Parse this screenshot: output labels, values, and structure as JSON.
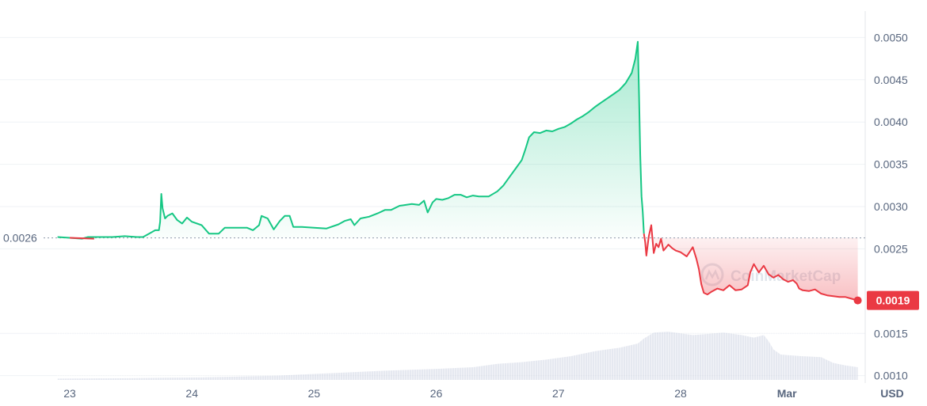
{
  "chart_data": {
    "type": "line",
    "x_tick_labels": [
      "23",
      "24",
      "25",
      "26",
      "27",
      "28",
      "Mar"
    ],
    "currency_label": "USD",
    "y_ticks": [
      {
        "value": 0.005,
        "label": "0.0050"
      },
      {
        "value": 0.0045,
        "label": "0.0045"
      },
      {
        "value": 0.004,
        "label": "0.0040"
      },
      {
        "value": 0.0035,
        "label": "0.0035"
      },
      {
        "value": 0.003,
        "label": "0.0030"
      },
      {
        "value": 0.0025,
        "label": "0.0025"
      },
      {
        "value": 0.0015,
        "label": "0.0015"
      },
      {
        "value": 0.001,
        "label": "0.0010"
      }
    ],
    "ylim": [
      0.00095,
      0.00535
    ],
    "xlim": [
      22.6,
      30.45
    ],
    "reference_price": {
      "value": 0.00263,
      "label": "0.0026"
    },
    "current_price": {
      "value": 0.00189,
      "label": "0.0019"
    },
    "watermark": "CoinMarketCap",
    "grid": true,
    "colors": {
      "up": "#16c784",
      "down": "#ea3943",
      "grid": "#eff2f5",
      "axis_text": "#58667e",
      "volume": "#cfd6e4"
    },
    "series": [
      {
        "values": [
          [
            22.9,
            0.00264
          ],
          [
            23.0,
            0.00263
          ],
          [
            23.1,
            0.00262
          ],
          [
            23.15,
            0.00264
          ],
          [
            23.25,
            0.00264
          ],
          [
            23.35,
            0.00264
          ],
          [
            23.45,
            0.00265
          ],
          [
            23.55,
            0.00264
          ],
          [
            23.6,
            0.00264
          ],
          [
            23.65,
            0.00268
          ],
          [
            23.7,
            0.00272
          ],
          [
            23.73,
            0.00272
          ],
          [
            23.74,
            0.00282
          ],
          [
            23.75,
            0.00315
          ],
          [
            23.76,
            0.00298
          ],
          [
            23.78,
            0.00286
          ],
          [
            23.8,
            0.00289
          ],
          [
            23.84,
            0.00292
          ],
          [
            23.88,
            0.00284
          ],
          [
            23.92,
            0.0028
          ],
          [
            23.96,
            0.00287
          ],
          [
            24.0,
            0.00282
          ],
          [
            24.08,
            0.00278
          ],
          [
            24.14,
            0.00268
          ],
          [
            24.22,
            0.00268
          ],
          [
            24.27,
            0.00275
          ],
          [
            24.35,
            0.00275
          ],
          [
            24.45,
            0.00275
          ],
          [
            24.5,
            0.00272
          ],
          [
            24.55,
            0.00278
          ],
          [
            24.57,
            0.00289
          ],
          [
            24.62,
            0.00286
          ],
          [
            24.67,
            0.00273
          ],
          [
            24.72,
            0.00283
          ],
          [
            24.76,
            0.00289
          ],
          [
            24.8,
            0.00289
          ],
          [
            24.83,
            0.00276
          ],
          [
            24.9,
            0.00276
          ],
          [
            25.0,
            0.00275
          ],
          [
            25.1,
            0.00274
          ],
          [
            25.2,
            0.00279
          ],
          [
            25.25,
            0.00283
          ],
          [
            25.3,
            0.00285
          ],
          [
            25.33,
            0.00278
          ],
          [
            25.38,
            0.00286
          ],
          [
            25.45,
            0.00288
          ],
          [
            25.52,
            0.00292
          ],
          [
            25.58,
            0.00296
          ],
          [
            25.63,
            0.00296
          ],
          [
            25.7,
            0.00301
          ],
          [
            25.8,
            0.00303
          ],
          [
            25.86,
            0.00302
          ],
          [
            25.9,
            0.00307
          ],
          [
            25.93,
            0.00293
          ],
          [
            25.97,
            0.00305
          ],
          [
            26.0,
            0.00309
          ],
          [
            26.05,
            0.00308
          ],
          [
            26.1,
            0.0031
          ],
          [
            26.15,
            0.00314
          ],
          [
            26.2,
            0.00314
          ],
          [
            26.25,
            0.00311
          ],
          [
            26.3,
            0.00313
          ],
          [
            26.35,
            0.00312
          ],
          [
            26.43,
            0.00312
          ],
          [
            26.5,
            0.00318
          ],
          [
            26.55,
            0.00325
          ],
          [
            26.6,
            0.00335
          ],
          [
            26.65,
            0.00345
          ],
          [
            26.7,
            0.00355
          ],
          [
            26.73,
            0.00368
          ],
          [
            26.76,
            0.00382
          ],
          [
            26.8,
            0.00388
          ],
          [
            26.85,
            0.00387
          ],
          [
            26.9,
            0.0039
          ],
          [
            26.95,
            0.00389
          ],
          [
            27.0,
            0.00392
          ],
          [
            27.05,
            0.00394
          ],
          [
            27.1,
            0.00398
          ],
          [
            27.15,
            0.00403
          ],
          [
            27.2,
            0.00407
          ],
          [
            27.25,
            0.00412
          ],
          [
            27.3,
            0.00418
          ],
          [
            27.35,
            0.00423
          ],
          [
            27.4,
            0.00428
          ],
          [
            27.45,
            0.00433
          ],
          [
            27.5,
            0.00438
          ],
          [
            27.55,
            0.00446
          ],
          [
            27.6,
            0.00458
          ],
          [
            27.63,
            0.00475
          ],
          [
            27.65,
            0.00495
          ],
          [
            27.66,
            0.0043
          ],
          [
            27.67,
            0.0036
          ],
          [
            27.68,
            0.00312
          ],
          [
            27.69,
            0.00294
          ],
          [
            27.7,
            0.00268
          ]
        ]
      },
      {
        "values": [
          [
            27.7,
            0.00268
          ],
          [
            27.71,
            0.00258
          ],
          [
            27.72,
            0.00242
          ],
          [
            27.74,
            0.00265
          ],
          [
            27.76,
            0.00278
          ],
          [
            27.78,
            0.00245
          ],
          [
            27.8,
            0.00256
          ],
          [
            27.82,
            0.00252
          ],
          [
            27.84,
            0.00262
          ],
          [
            27.86,
            0.00248
          ],
          [
            27.9,
            0.00255
          ],
          [
            27.93,
            0.00251
          ],
          [
            27.96,
            0.00248
          ],
          [
            28.0,
            0.00246
          ],
          [
            28.05,
            0.00241
          ],
          [
            28.1,
            0.00252
          ],
          [
            28.13,
            0.00238
          ],
          [
            28.15,
            0.00226
          ],
          [
            28.17,
            0.00208
          ],
          [
            28.19,
            0.00198
          ],
          [
            28.22,
            0.00196
          ],
          [
            28.25,
            0.00199
          ],
          [
            28.3,
            0.00203
          ],
          [
            28.35,
            0.00201
          ],
          [
            28.4,
            0.00207
          ],
          [
            28.45,
            0.00201
          ],
          [
            28.5,
            0.00202
          ],
          [
            28.55,
            0.00207
          ],
          [
            28.57,
            0.00222
          ],
          [
            28.6,
            0.00232
          ],
          [
            28.64,
            0.00222
          ],
          [
            28.68,
            0.0023
          ],
          [
            28.72,
            0.0022
          ],
          [
            28.76,
            0.00216
          ],
          [
            28.8,
            0.00219
          ],
          [
            28.84,
            0.00214
          ],
          [
            28.88,
            0.00211
          ],
          [
            28.92,
            0.00213
          ],
          [
            28.95,
            0.00209
          ],
          [
            28.97,
            0.00203
          ],
          [
            29.0,
            0.00201
          ],
          [
            29.05,
            0.002
          ],
          [
            29.1,
            0.00202
          ],
          [
            29.15,
            0.00197
          ],
          [
            29.2,
            0.00195
          ],
          [
            29.25,
            0.00194
          ],
          [
            29.3,
            0.00193
          ],
          [
            29.35,
            0.00193
          ],
          [
            29.4,
            0.00191
          ],
          [
            29.45,
            0.00189
          ]
        ]
      },
      {
        "values": [
          [
            22.9,
            0.000965
          ],
          [
            23.2,
            0.000968
          ],
          [
            23.5,
            0.00097
          ],
          [
            23.8,
            0.000975
          ],
          [
            24.1,
            0.00098
          ],
          [
            24.4,
            0.00099
          ],
          [
            24.7,
            0.001
          ],
          [
            25.0,
            0.00102
          ],
          [
            25.3,
            0.00104
          ],
          [
            25.6,
            0.00106
          ],
          [
            26.0,
            0.00108
          ],
          [
            26.3,
            0.0011
          ],
          [
            26.5,
            0.00114
          ],
          [
            26.7,
            0.00116
          ],
          [
            26.9,
            0.00119
          ],
          [
            27.1,
            0.00123
          ],
          [
            27.3,
            0.00129
          ],
          [
            27.5,
            0.00133
          ],
          [
            27.65,
            0.00138
          ],
          [
            27.7,
            0.00144
          ],
          [
            27.78,
            0.00151
          ],
          [
            27.9,
            0.00152
          ],
          [
            28.1,
            0.00148
          ],
          [
            28.2,
            0.00149
          ],
          [
            28.35,
            0.00151
          ],
          [
            28.5,
            0.00148
          ],
          [
            28.6,
            0.00145
          ],
          [
            28.68,
            0.00148
          ],
          [
            28.72,
            0.00141
          ],
          [
            28.76,
            0.00131
          ],
          [
            28.82,
            0.00125
          ],
          [
            29.0,
            0.00123
          ],
          [
            29.15,
            0.00122
          ],
          [
            29.25,
            0.00115
          ],
          [
            29.35,
            0.00112
          ],
          [
            29.45,
            0.0011
          ]
        ]
      }
    ]
  }
}
